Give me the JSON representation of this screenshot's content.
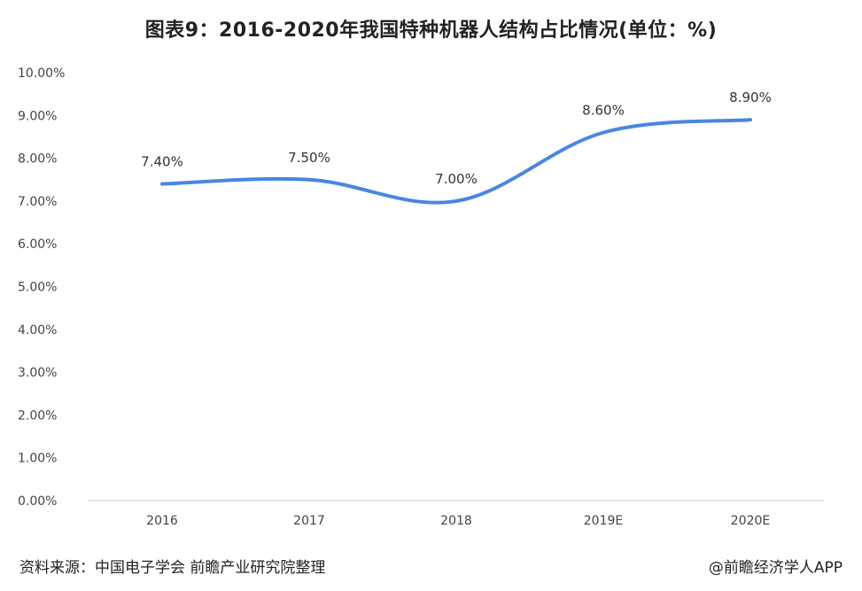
{
  "header": {
    "title": "图表9：2016-2020年我国特种机器人结构占比情况(单位：%)"
  },
  "footer": {
    "source": "资料来源：中国电子学会 前瞻产业研究院整理",
    "credit": "@前瞻经济学人APP"
  },
  "chart_data": {
    "type": "line",
    "title": "图表9：2016-2020年我国特种机器人结构占比情况(单位：%)",
    "categories": [
      "2016",
      "2017",
      "2018",
      "2019E",
      "2020E"
    ],
    "series": [
      {
        "values": [
          7.4,
          7.5,
          7.0,
          8.6,
          8.9
        ],
        "color": "#4a86e0"
      }
    ],
    "data_labels": [
      "7.40%",
      "7.50%",
      "7.00%",
      "8.60%",
      "8.90%"
    ],
    "y_ticks": [
      "0.00%",
      "1.00%",
      "2.00%",
      "3.00%",
      "4.00%",
      "5.00%",
      "6.00%",
      "7.00%",
      "8.00%",
      "9.00%",
      "10.00%"
    ],
    "ylim": [
      0,
      10
    ],
    "xlabel": "",
    "ylabel": "",
    "grid": false,
    "legend": "none",
    "smooth": true
  }
}
